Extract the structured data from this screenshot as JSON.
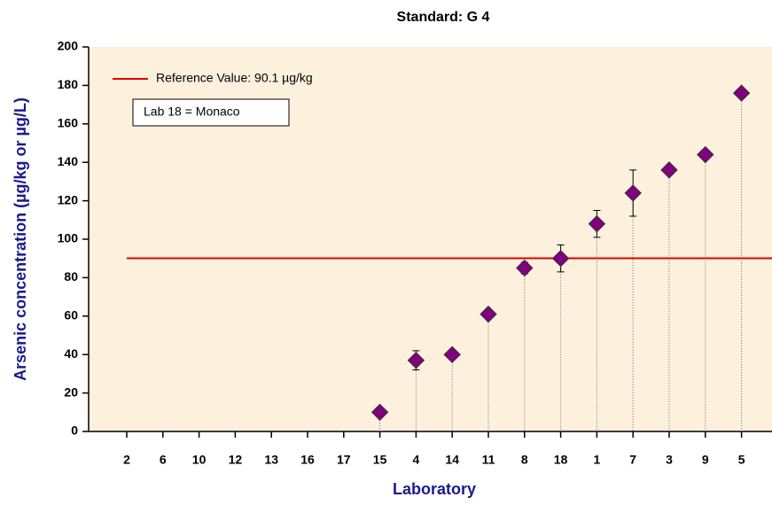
{
  "chart_data": {
    "type": "scatter",
    "title": "Standard: G 4",
    "xlabel": "Laboratory",
    "ylabel": "Arsenic concentration (µg/kg or µg/L)",
    "categories": [
      "2",
      "6",
      "10",
      "12",
      "13",
      "16",
      "17",
      "15",
      "4",
      "14",
      "11",
      "8",
      "18",
      "1",
      "7",
      "3",
      "9",
      "5"
    ],
    "values": [
      null,
      null,
      null,
      null,
      null,
      null,
      null,
      10,
      37,
      40,
      61,
      85,
      90,
      108,
      124,
      136,
      144,
      176
    ],
    "errors": [
      null,
      null,
      null,
      null,
      null,
      null,
      null,
      null,
      5,
      null,
      null,
      3,
      7,
      7,
      12,
      null,
      null,
      null
    ],
    "color": "#800080",
    "ylim": [
      0,
      200
    ],
    "yticks": [
      0,
      20,
      40,
      60,
      80,
      100,
      120,
      140,
      160,
      180,
      200
    ],
    "reference": {
      "value": 90.1,
      "label": "Reference Value: 90.1 µg/kg",
      "color": "#e00000"
    },
    "annotation": "Lab 18 = Monaco"
  }
}
